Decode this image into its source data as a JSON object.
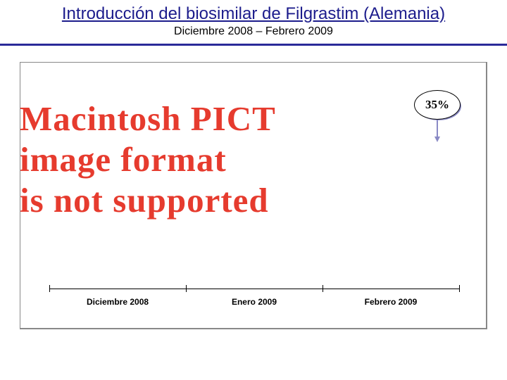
{
  "header": {
    "title": "Introducción del biosimilar de Filgrastim (Alemania)",
    "subtitle": "Diciembre 2008 – Febrero 2009",
    "title_color": "#1c1c8c",
    "subtitle_color": "#000000",
    "rule_color": "#2a2a99"
  },
  "frame": {
    "border_color": "#888888"
  },
  "pict_error": {
    "lines": [
      "Macintosh PICT",
      "image format",
      "is not supported"
    ],
    "color": "#e63b2e",
    "font_size": 49,
    "line_tops": [
      140,
      198,
      256
    ],
    "letter_spacing": 1
  },
  "badge": {
    "text": "35%",
    "fill": "#ffffff",
    "border": "#000000",
    "shadow": "#8a8ac5",
    "text_color": "#000000"
  },
  "arrow": {
    "color": "#8a8ac5"
  },
  "axis": {
    "line_color": "#000000",
    "tick_positions_pct": [
      0,
      33.33,
      66.67,
      100
    ],
    "label_centers_pct": [
      16.67,
      50.0,
      83.33
    ],
    "labels": [
      "Diciembre 2008",
      "Enero 2009",
      "Febrero 2009"
    ],
    "label_color": "#000000"
  }
}
